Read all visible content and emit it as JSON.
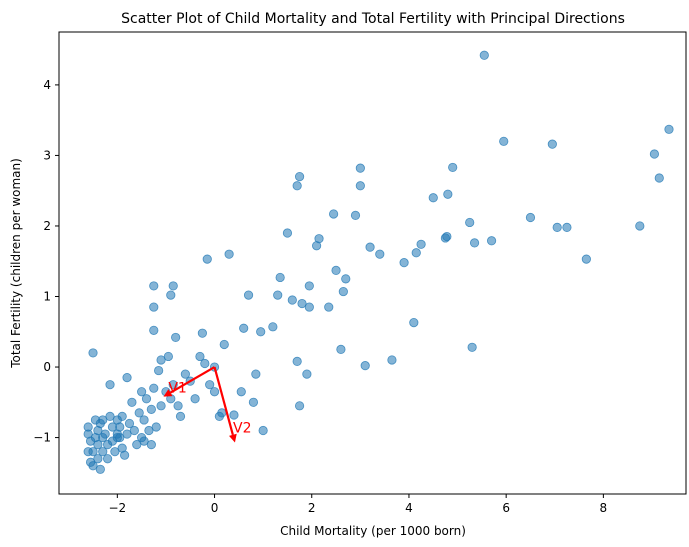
{
  "chart_data": {
    "type": "scatter",
    "title": "Scatter Plot of Child Mortality and Total Fertility with Principal Directions",
    "xlabel": "Child Mortality (per 1000 born)",
    "ylabel": "Total Fertility (children per woman)",
    "xlim": [
      -3.2,
      9.7
    ],
    "ylim": [
      -1.8,
      4.75
    ],
    "xticks": [
      -2,
      0,
      2,
      4,
      6,
      8
    ],
    "yticks": [
      -1,
      0,
      1,
      2,
      3,
      4
    ],
    "grid": false,
    "point_color": "#1f77b4",
    "arrow_color": "#ff0000",
    "points": [
      [
        -2.6,
        -0.95
      ],
      [
        -2.6,
        -0.85
      ],
      [
        -2.55,
        -1.05
      ],
      [
        -2.5,
        -1.2
      ],
      [
        -2.5,
        -1.4
      ],
      [
        -2.45,
        -0.75
      ],
      [
        -2.45,
        -1.0
      ],
      [
        -2.4,
        -0.9
      ],
      [
        -2.4,
        -1.1
      ],
      [
        -2.4,
        -1.3
      ],
      [
        -2.35,
        -1.45
      ],
      [
        -2.35,
        -0.8
      ],
      [
        -2.3,
        -1.0
      ],
      [
        -2.3,
        -1.2
      ],
      [
        -2.25,
        -0.95
      ],
      [
        -2.2,
        -1.1
      ],
      [
        -2.2,
        -1.3
      ],
      [
        -2.15,
        -0.7
      ],
      [
        -2.1,
        -0.85
      ],
      [
        -2.1,
        -1.05
      ],
      [
        -2.05,
        -1.2
      ],
      [
        -2.0,
        -0.95
      ],
      [
        -2.0,
        -0.75
      ],
      [
        -1.95,
        -1.0
      ],
      [
        -1.9,
        -0.7
      ],
      [
        -1.9,
        -1.15
      ],
      [
        -1.85,
        -1.25
      ],
      [
        -1.8,
        -0.95
      ],
      [
        -1.75,
        -0.8
      ],
      [
        -1.7,
        -0.5
      ],
      [
        -1.65,
        -0.9
      ],
      [
        -1.6,
        -1.1
      ],
      [
        -1.55,
        -0.65
      ],
      [
        -1.5,
        -0.35
      ],
      [
        -1.5,
        -1.0
      ],
      [
        -1.45,
        -0.75
      ],
      [
        -1.4,
        -0.45
      ],
      [
        -1.35,
        -0.9
      ],
      [
        -1.3,
        -1.1
      ],
      [
        -1.3,
        -0.6
      ],
      [
        -1.25,
        -0.3
      ],
      [
        -1.8,
        -0.15
      ],
      [
        -2.15,
        -0.25
      ],
      [
        -2.5,
        0.2
      ],
      [
        -2.6,
        -1.2
      ],
      [
        -2.55,
        -1.35
      ],
      [
        -1.95,
        -0.85
      ],
      [
        -1.45,
        -1.05
      ],
      [
        -1.2,
        -0.85
      ],
      [
        -1.1,
        -0.55
      ],
      [
        -1.15,
        -0.05
      ],
      [
        -1.1,
        0.1
      ],
      [
        -1.25,
        0.52
      ],
      [
        -1.25,
        0.85
      ],
      [
        -1.25,
        1.15
      ],
      [
        -0.9,
        1.02
      ],
      [
        -0.85,
        1.15
      ],
      [
        -0.8,
        0.42
      ],
      [
        -0.95,
        0.15
      ],
      [
        -1.0,
        -0.35
      ],
      [
        -0.9,
        -0.45
      ],
      [
        -0.85,
        -0.25
      ],
      [
        -0.75,
        -0.55
      ],
      [
        -0.7,
        -0.7
      ],
      [
        -0.6,
        -0.1
      ],
      [
        -0.5,
        -0.2
      ],
      [
        -0.4,
        -0.45
      ],
      [
        -0.3,
        0.15
      ],
      [
        -0.25,
        0.48
      ],
      [
        -0.2,
        0.05
      ],
      [
        -0.1,
        -0.25
      ],
      [
        0.0,
        -0.35
      ],
      [
        0.0,
        0.0
      ],
      [
        0.1,
        -0.7
      ],
      [
        0.15,
        -0.65
      ],
      [
        0.2,
        0.32
      ],
      [
        0.3,
        1.6
      ],
      [
        -0.15,
        1.53
      ],
      [
        0.4,
        -0.68
      ],
      [
        0.55,
        -0.35
      ],
      [
        0.6,
        0.55
      ],
      [
        0.7,
        1.02
      ],
      [
        0.8,
        -0.5
      ],
      [
        0.85,
        -0.1
      ],
      [
        0.95,
        0.5
      ],
      [
        1.0,
        -0.9
      ],
      [
        1.2,
        0.57
      ],
      [
        1.3,
        1.02
      ],
      [
        1.35,
        1.27
      ],
      [
        1.5,
        1.9
      ],
      [
        1.6,
        0.95
      ],
      [
        1.7,
        0.08
      ],
      [
        1.75,
        -0.55
      ],
      [
        1.8,
        0.9
      ],
      [
        1.9,
        -0.1
      ],
      [
        1.95,
        1.15
      ],
      [
        1.95,
        0.85
      ],
      [
        1.7,
        2.57
      ],
      [
        1.75,
        2.7
      ],
      [
        2.1,
        1.72
      ],
      [
        2.15,
        1.82
      ],
      [
        2.35,
        0.85
      ],
      [
        2.45,
        2.17
      ],
      [
        2.5,
        1.37
      ],
      [
        2.6,
        0.25
      ],
      [
        2.65,
        1.07
      ],
      [
        2.7,
        1.25
      ],
      [
        2.9,
        2.15
      ],
      [
        3.0,
        2.57
      ],
      [
        3.0,
        2.82
      ],
      [
        3.1,
        0.02
      ],
      [
        3.2,
        1.7
      ],
      [
        3.4,
        1.6
      ],
      [
        3.65,
        0.1
      ],
      [
        3.9,
        1.48
      ],
      [
        4.1,
        0.63
      ],
      [
        4.15,
        1.62
      ],
      [
        4.25,
        1.74
      ],
      [
        4.5,
        2.4
      ],
      [
        4.75,
        1.83
      ],
      [
        4.78,
        1.85
      ],
      [
        4.8,
        2.45
      ],
      [
        4.9,
        2.83
      ],
      [
        5.25,
        2.05
      ],
      [
        5.3,
        0.28
      ],
      [
        5.35,
        1.76
      ],
      [
        5.55,
        4.42
      ],
      [
        5.7,
        1.79
      ],
      [
        5.95,
        3.2
      ],
      [
        6.5,
        2.12
      ],
      [
        6.95,
        3.16
      ],
      [
        7.05,
        1.98
      ],
      [
        7.25,
        1.98
      ],
      [
        7.65,
        1.53
      ],
      [
        8.75,
        2.0
      ],
      [
        9.05,
        3.02
      ],
      [
        9.15,
        2.68
      ],
      [
        9.35,
        3.37
      ],
      [
        -2.0,
        -1.0
      ],
      [
        -2.3,
        -0.75
      ]
    ],
    "arrows": [
      {
        "name": "V1",
        "from": [
          0,
          0
        ],
        "to": [
          -1.05,
          -0.42
        ]
      },
      {
        "name": "V2",
        "from": [
          0,
          0
        ],
        "to": [
          0.42,
          -1.07
        ]
      }
    ],
    "arrow_labels": [
      {
        "text": "V1",
        "at": [
          -0.95,
          -0.36
        ]
      },
      {
        "text": "V2",
        "at": [
          0.38,
          -0.93
        ]
      }
    ]
  }
}
